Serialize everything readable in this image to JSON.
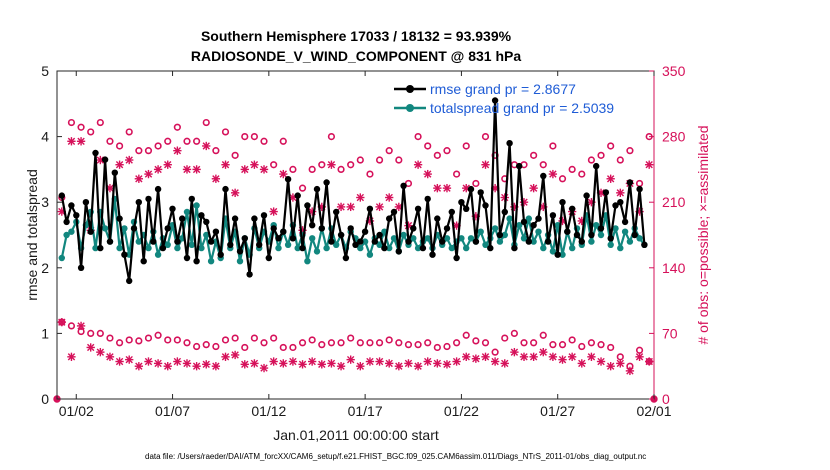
{
  "chart_data": {
    "type": "line",
    "title": "Southern Hemisphere 17033 / 18132 = 93.939%",
    "subtitle": "RADIOSONDE_V_WIND_COMPONENT @ 831 hPa",
    "xlabel": "Jan.01,2011 00:00:00 start",
    "ylabel": "rmse and totalspread",
    "y2label": "# of obs: o=possible; ×=assimilated",
    "xlim": [
      0,
      31
    ],
    "ylim": [
      0,
      5
    ],
    "y2lim": [
      0,
      350
    ],
    "x_ticks": [
      {
        "value": 1,
        "label": "01/02"
      },
      {
        "value": 6,
        "label": "01/07"
      },
      {
        "value": 11,
        "label": "01/12"
      },
      {
        "value": 16,
        "label": "01/17"
      },
      {
        "value": 21,
        "label": "01/22"
      },
      {
        "value": 26,
        "label": "01/27"
      },
      {
        "value": 31,
        "label": "02/01"
      }
    ],
    "y_ticks": [
      "0",
      "1",
      "2",
      "3",
      "4",
      "5"
    ],
    "y2_ticks": [
      "0",
      "70",
      "140",
      "210",
      "280",
      "350"
    ],
    "colors": {
      "rmse": "#000000",
      "spread": "#12877f",
      "obs": "#d6115a",
      "legend_text": "#1f5cd6"
    },
    "legend": {
      "position": "top-right",
      "entries": [
        "rmse grand pr = 2.8677",
        "totalspread grand pr = 2.5039"
      ]
    },
    "x_step": 0.25,
    "series": [
      {
        "name": "rmse grand pr = 2.8677",
        "axis": "left",
        "values": [
          3.1,
          2.7,
          2.95,
          2.8,
          2.0,
          3.0,
          2.55,
          3.75,
          2.3,
          3.65,
          2.4,
          3.45,
          2.75,
          2.2,
          1.8,
          2.6,
          3.0,
          2.1,
          3.05,
          2.4,
          3.2,
          2.3,
          2.6,
          2.9,
          2.4,
          2.75,
          2.15,
          3.05,
          2.1,
          2.8,
          2.7,
          2.4,
          2.55,
          2.2,
          3.2,
          2.35,
          2.75,
          2.25,
          2.45,
          1.9,
          2.75,
          2.35,
          2.8,
          2.15,
          2.6,
          2.45,
          2.55,
          3.35,
          2.45,
          3.1,
          2.3,
          2.95,
          2.65,
          3.2,
          2.6,
          3.3,
          2.4,
          2.85,
          2.5,
          2.15,
          2.6,
          2.35,
          2.4,
          2.55,
          2.9,
          2.4,
          2.5,
          2.3,
          2.75,
          2.85,
          2.25,
          3.25,
          2.4,
          2.6,
          2.9,
          2.3,
          3.05,
          2.2,
          2.75,
          2.4,
          2.6,
          2.85,
          2.15,
          3.0,
          2.9,
          3.2,
          2.4,
          3.15,
          2.95,
          2.3,
          4.55,
          2.5,
          2.85,
          3.9,
          2.3,
          3.55,
          2.7,
          2.4,
          2.65,
          2.75,
          3.4,
          2.4,
          2.8,
          2.2,
          3.0,
          2.55,
          2.9,
          2.5,
          2.4,
          3.1,
          2.5,
          3.55,
          2.6,
          3.15,
          2.45,
          2.95,
          3.0,
          2.7,
          3.3,
          2.5,
          3.2,
          2.35
        ]
      },
      {
        "name": "totalspread grand pr = 2.5039",
        "axis": "left",
        "values": [
          2.15,
          2.5,
          2.55,
          2.7,
          2.3,
          2.65,
          2.85,
          2.3,
          2.85,
          2.6,
          2.4,
          3.05,
          2.3,
          2.6,
          2.2,
          2.7,
          2.4,
          2.5,
          2.3,
          2.55,
          2.2,
          2.45,
          2.35,
          2.65,
          2.3,
          2.45,
          2.85,
          2.35,
          2.95,
          2.3,
          2.5,
          2.1,
          2.4,
          2.15,
          2.75,
          2.3,
          2.55,
          2.1,
          2.45,
          2.2,
          2.6,
          2.3,
          2.55,
          2.4,
          2.65,
          2.3,
          2.55,
          2.35,
          2.65,
          2.3,
          2.5,
          2.1,
          2.45,
          2.25,
          2.6,
          2.3,
          2.6,
          2.35,
          2.5,
          2.3,
          2.55,
          2.45,
          2.3,
          2.4,
          2.2,
          2.45,
          2.35,
          2.55,
          2.3,
          2.45,
          2.25,
          2.5,
          2.35,
          2.45,
          2.3,
          2.4,
          2.45,
          2.3,
          2.5,
          2.35,
          2.45,
          2.3,
          2.4,
          2.45,
          2.3,
          2.45,
          2.4,
          2.55,
          2.35,
          2.45,
          2.6,
          2.4,
          2.5,
          2.75,
          2.35,
          2.65,
          2.45,
          2.75,
          2.4,
          2.55,
          2.3,
          2.5,
          2.25,
          2.65,
          2.2,
          2.55,
          2.3,
          2.6,
          2.35,
          2.8,
          2.4,
          2.65,
          2.5,
          2.8,
          2.35,
          2.6,
          2.3,
          2.55,
          2.4,
          2.6,
          2.45,
          2.35
        ]
      }
    ],
    "obs_step": 0.5,
    "obs_high_possible": [
      215,
      295,
      290,
      285,
      295,
      275,
      270,
      285,
      265,
      265,
      270,
      275,
      290,
      275,
      275,
      295,
      265,
      285,
      260,
      280,
      280,
      275,
      250,
      275,
      245,
      225,
      245,
      250,
      280,
      245,
      250,
      255,
      240,
      255,
      265,
      255,
      230,
      280,
      270,
      260,
      265,
      240,
      270,
      230,
      280,
      260,
      235,
      250,
      250,
      260,
      250,
      270,
      235,
      245,
      240,
      255,
      260,
      270,
      255,
      265,
      230,
      280
    ],
    "obs_high_assimilated": [
      200,
      275,
      275,
      180,
      255,
      225,
      250,
      255,
      235,
      240,
      245,
      250,
      265,
      245,
      245,
      270,
      235,
      250,
      220,
      245,
      250,
      245,
      200,
      240,
      215,
      180,
      200,
      205,
      250,
      205,
      205,
      215,
      190,
      205,
      215,
      205,
      185,
      250,
      240,
      225,
      225,
      185,
      225,
      195,
      250,
      225,
      215,
      205,
      210,
      225,
      205,
      240,
      190,
      200,
      190,
      210,
      220,
      235,
      220,
      230,
      200,
      250
    ],
    "obs_low_possible": [
      82,
      78,
      72,
      70,
      70,
      65,
      60,
      63,
      62,
      65,
      68,
      63,
      63,
      60,
      56,
      58,
      56,
      63,
      65,
      55,
      65,
      60,
      65,
      55,
      55,
      60,
      63,
      58,
      60,
      60,
      65,
      60,
      60,
      60,
      63,
      60,
      58,
      58,
      60,
      55,
      56,
      60,
      68,
      62,
      60,
      50,
      65,
      70,
      60,
      60,
      68,
      58,
      58,
      63,
      56,
      60,
      58,
      55,
      45,
      35,
      52,
      40
    ],
    "obs_low_assimilated": [
      82,
      45,
      78,
      55,
      50,
      45,
      40,
      42,
      35,
      40,
      38,
      35,
      40,
      38,
      35,
      37,
      35,
      45,
      47,
      37,
      38,
      33,
      40,
      38,
      40,
      37,
      40,
      37,
      38,
      35,
      42,
      35,
      40,
      40,
      38,
      35,
      38,
      35,
      40,
      38,
      37,
      40,
      45,
      43,
      45,
      40,
      38,
      50,
      45,
      45,
      50,
      45,
      42,
      45,
      38,
      45,
      40,
      35,
      38,
      30,
      45,
      40
    ],
    "obs_edge_points": [
      0,
      0
    ]
  },
  "footer": "data file: /Users/raeder/DAI/ATM_forcXX/CAM6_setup/f.e21.FHIST_BGC.f09_025.CAM6assim.011/Diags_NTrS_2011-01/obs_diag_output.nc"
}
